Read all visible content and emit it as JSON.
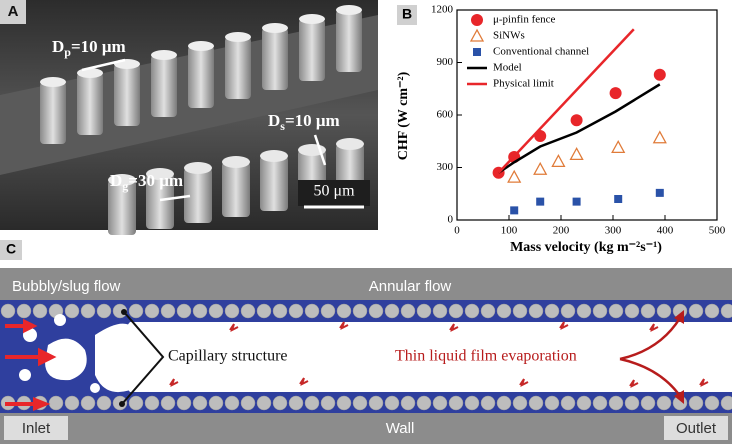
{
  "panel_a": {
    "label": "A",
    "annotations": [
      {
        "symbol": "D",
        "sub": "p",
        "text": "=10 μm"
      },
      {
        "symbol": "D",
        "sub": "s",
        "text": "=10 μm"
      },
      {
        "symbol": "D",
        "sub": "g",
        "text": "=30 μm"
      }
    ],
    "scale_bar": "50 μm"
  },
  "chart_data": {
    "type": "scatter",
    "panel_label": "B",
    "xlabel": "Mass velocity (kg m⁻²s⁻¹)",
    "ylabel": "CHF (W cm⁻²)",
    "xlim": [
      0,
      500
    ],
    "xticks": [
      0,
      100,
      200,
      300,
      400,
      500
    ],
    "ylim": [
      0,
      1200
    ],
    "yticks": [
      0,
      300,
      600,
      900,
      1200
    ],
    "legend": "upper left",
    "series": [
      {
        "name": "μ-pinfin fence",
        "color": "#e8262a",
        "marker": "circle",
        "x": [
          80,
          110,
          160,
          230,
          305,
          390
        ],
        "values": [
          270,
          360,
          480,
          570,
          725,
          830
        ]
      },
      {
        "name": "SiNWs",
        "color": "#e07b39",
        "marker": "triangle",
        "x": [
          110,
          160,
          195,
          230,
          310,
          390
        ],
        "values": [
          245,
          290,
          335,
          375,
          415,
          470
        ]
      },
      {
        "name": "Conventional channel",
        "color": "#2a52a8",
        "marker": "square",
        "x": [
          110,
          160,
          230,
          310,
          390
        ],
        "values": [
          55,
          105,
          105,
          120,
          155
        ]
      },
      {
        "name": "Model",
        "color": "#000000",
        "marker": "line",
        "x": [
          80,
          110,
          160,
          230,
          305,
          390
        ],
        "values": [
          270,
          330,
          420,
          500,
          620,
          775
        ]
      },
      {
        "name": "Physical limit",
        "color": "#e8262a",
        "marker": "line",
        "x": [
          80,
          340
        ],
        "values": [
          270,
          1090
        ]
      }
    ]
  },
  "panel_c": {
    "label": "C",
    "regions": [
      "Bubbly/slug flow",
      "Annular flow"
    ],
    "capillary": "Capillary structure",
    "evaporation": "Thin liquid film evaporation",
    "bottom": [
      "Inlet",
      "Wall",
      "Outlet"
    ]
  }
}
